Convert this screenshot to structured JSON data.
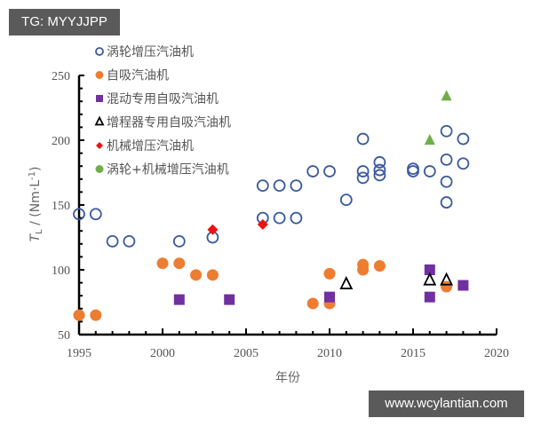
{
  "watermarks": {
    "top": "TG: MYYJJPP",
    "bottom": "www.wcylantian.com"
  },
  "colors": {
    "turbo": "#3a5a9c",
    "na": "#ed7d31",
    "hybrid": "#7030a0",
    "erev": "#000000",
    "super": "#ee1111",
    "twin": "#70ad47",
    "axis": "#000000"
  },
  "chart_data": {
    "type": "scatter",
    "title": "",
    "xlabel": "年份",
    "ylabel": "T_L / (Nm·L⁻¹)",
    "xlim": [
      1995,
      2020
    ],
    "ylim": [
      50,
      250
    ],
    "x_ticks": [
      1995,
      2000,
      2005,
      2010,
      2015,
      2020
    ],
    "y_ticks": [
      50,
      100,
      150,
      200,
      250
    ],
    "grid": false,
    "legend_position": "top-left inside",
    "series": [
      {
        "name": "涡轮增压汽油机",
        "marker": "open-circle",
        "color": "#3a5a9c",
        "points": [
          [
            1995,
            143
          ],
          [
            1996,
            143
          ],
          [
            1997,
            122
          ],
          [
            1998,
            122
          ],
          [
            2001,
            122
          ],
          [
            2003,
            125
          ],
          [
            2006,
            165
          ],
          [
            2007,
            165
          ],
          [
            2008,
            165
          ],
          [
            2006,
            140
          ],
          [
            2007,
            140
          ],
          [
            2008,
            140
          ],
          [
            2009,
            176
          ],
          [
            2010,
            176
          ],
          [
            2011,
            154
          ],
          [
            2012,
            201
          ],
          [
            2012,
            176
          ],
          [
            2012,
            171
          ],
          [
            2013,
            183
          ],
          [
            2013,
            177
          ],
          [
            2013,
            173
          ],
          [
            2015,
            178
          ],
          [
            2015,
            176
          ],
          [
            2016,
            176
          ],
          [
            2017,
            207
          ],
          [
            2017,
            185
          ],
          [
            2017,
            168
          ],
          [
            2017,
            152
          ],
          [
            2018,
            201
          ],
          [
            2018,
            182
          ]
        ]
      },
      {
        "name": "自吸汽油机",
        "marker": "filled-circle",
        "color": "#ed7d31",
        "points": [
          [
            1995,
            65
          ],
          [
            1996,
            65
          ],
          [
            2000,
            105
          ],
          [
            2001,
            105
          ],
          [
            2002,
            96
          ],
          [
            2003,
            96
          ],
          [
            2009,
            74
          ],
          [
            2010,
            74
          ],
          [
            2010,
            97
          ],
          [
            2012,
            104
          ],
          [
            2012,
            100
          ],
          [
            2013,
            103
          ],
          [
            2017,
            87
          ]
        ]
      },
      {
        "name": "混动专用自吸汽油机",
        "marker": "filled-square",
        "color": "#7030a0",
        "points": [
          [
            2001,
            77
          ],
          [
            2004,
            77
          ],
          [
            2010,
            79
          ],
          [
            2016,
            100
          ],
          [
            2016,
            79
          ],
          [
            2018,
            88
          ]
        ]
      },
      {
        "name": "增程器专用自吸汽油机",
        "marker": "open-triangle",
        "color": "#000000",
        "points": [
          [
            2011,
            89
          ],
          [
            2016,
            92
          ],
          [
            2017,
            92
          ]
        ]
      },
      {
        "name": "机械增压汽油机",
        "marker": "filled-diamond",
        "color": "#ee1111",
        "points": [
          [
            2003,
            131
          ],
          [
            2006,
            135
          ]
        ]
      },
      {
        "name": "涡轮+机械增压汽油机",
        "marker": "filled-triangle",
        "color": "#70ad47",
        "points": [
          [
            2016,
            200
          ],
          [
            2017,
            234
          ]
        ]
      }
    ]
  }
}
